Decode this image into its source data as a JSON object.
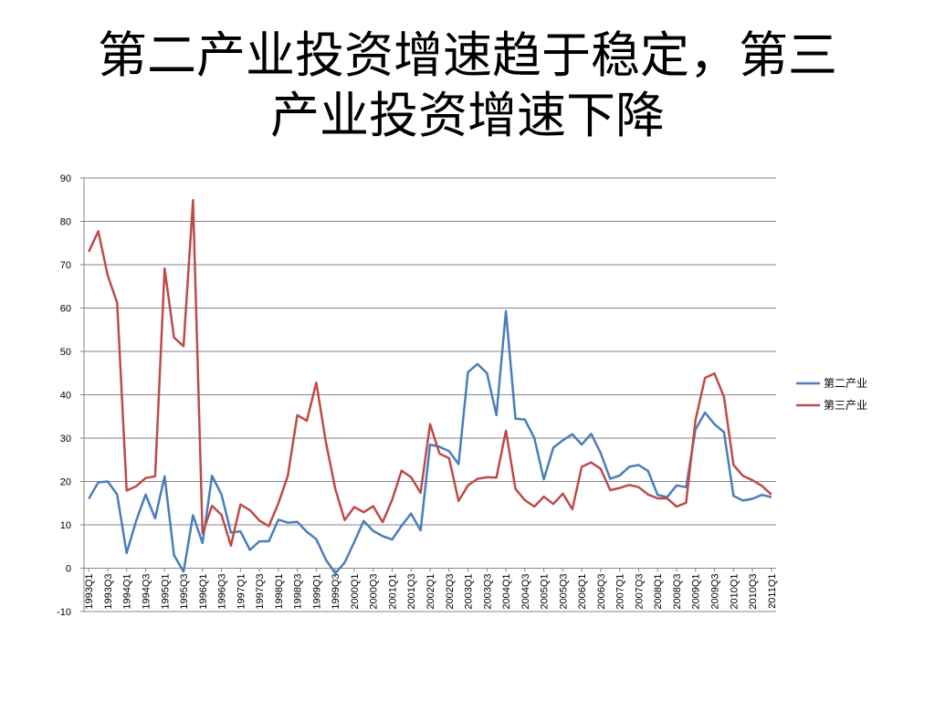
{
  "slide": {
    "title_line1": "第二产业投资增速趋于稳定，第三",
    "title_line2": "产业投资增速下降"
  },
  "chart_data": {
    "type": "line",
    "title": "",
    "xlabel": "",
    "ylabel": "",
    "ylim": [
      -10,
      90
    ],
    "yticks": [
      -10,
      0,
      10,
      20,
      30,
      40,
      50,
      60,
      70,
      80,
      90
    ],
    "grid": true,
    "legend_position": "right",
    "x": [
      "1993Q1",
      "1993Q2",
      "1993Q3",
      "1993Q4",
      "1994Q1",
      "1994Q2",
      "1994Q3",
      "1994Q4",
      "1995Q1",
      "1995Q2",
      "1995Q3",
      "1995Q4",
      "1996Q1",
      "1996Q2",
      "1996Q3",
      "1996Q4",
      "1997Q1",
      "1997Q2",
      "1997Q3",
      "1997Q4",
      "1998Q1",
      "1998Q2",
      "1998Q3",
      "1998Q4",
      "1999Q1",
      "1999Q2",
      "1999Q3",
      "1999Q4",
      "2000Q1",
      "2000Q2",
      "2000Q3",
      "2000Q4",
      "2001Q1",
      "2001Q2",
      "2001Q3",
      "2001Q4",
      "2002Q1",
      "2002Q2",
      "2002Q3",
      "2002Q4",
      "2003Q1",
      "2003Q2",
      "2003Q3",
      "2003Q4",
      "2004Q1",
      "2004Q2",
      "2004Q3",
      "2004Q4",
      "2005Q1",
      "2005Q2",
      "2005Q3",
      "2005Q4",
      "2006Q1",
      "2006Q2",
      "2006Q3",
      "2006Q4",
      "2007Q1",
      "2007Q2",
      "2007Q3",
      "2007Q4",
      "2008Q1",
      "2008Q2",
      "2008Q3",
      "2008Q4",
      "2009Q1",
      "2009Q2",
      "2009Q3",
      "2009Q4",
      "2010Q1",
      "2010Q2",
      "2010Q3",
      "2010Q4",
      "2011Q1"
    ],
    "x_tick_labels": [
      "1993Q1",
      "1993Q3",
      "1994Q1",
      "1994Q3",
      "1995Q1",
      "1995Q3",
      "1996Q1",
      "1996Q3",
      "1997Q1",
      "1997Q3",
      "1998Q1",
      "1998Q3",
      "1999Q1",
      "1999Q3",
      "2000Q1",
      "2000Q3",
      "2001Q1",
      "2001Q3",
      "2002Q1",
      "2002Q3",
      "2003Q1",
      "2003Q3",
      "2004Q1",
      "2004Q3",
      "2005Q1",
      "2005Q3",
      "2006Q1",
      "2006Q3",
      "2007Q1",
      "2007Q3",
      "2008Q1",
      "2008Q3",
      "2009Q1",
      "2009Q3",
      "2010Q1",
      "2010Q3",
      "2011Q1"
    ],
    "series": [
      {
        "name": "第二产业",
        "color": "#4a7ebb",
        "values": [
          16,
          19.8,
          20,
          17,
          3.5,
          10.9,
          17,
          11.5,
          21.2,
          3,
          -0.8,
          12.2,
          5.8,
          21.3,
          17,
          8.2,
          8.5,
          4.2,
          6.2,
          6.2,
          11.2,
          10.5,
          10.7,
          8.4,
          6.7,
          2,
          -1.2,
          1.3,
          6,
          10.9,
          8.6,
          7.4,
          6.6,
          9.8,
          12.6,
          8.7,
          28.5,
          28,
          27,
          24,
          45.2,
          47.1,
          45,
          35.3,
          59.3,
          34.5,
          34.3,
          30,
          20.5,
          27.8,
          29.5,
          30.9,
          28.5,
          31,
          26.5,
          20.6,
          21.4,
          23.4,
          23.8,
          22.4,
          16.9,
          16.4,
          19.1,
          18.7,
          32,
          35.9,
          33.2,
          31.4,
          16.7,
          15.6,
          16,
          16.9,
          16.4
        ]
      },
      {
        "name": "第三产业",
        "color": "#be4b48",
        "values": [
          73,
          77.7,
          67.5,
          61.2,
          17.9,
          18.9,
          20.8,
          21.2,
          69.1,
          53.2,
          51.2,
          84.9,
          8,
          14.4,
          12.3,
          5.2,
          14.7,
          13.4,
          11,
          9.7,
          15,
          21.3,
          35.3,
          34,
          42.8,
          29.2,
          18.3,
          11.1,
          14.1,
          12.9,
          14.3,
          10.6,
          15.8,
          22.5,
          21,
          17.4,
          33.2,
          26.4,
          25.4,
          15.5,
          19.1,
          20.6,
          21,
          20.9,
          31.7,
          18.3,
          15.7,
          14.2,
          16.5,
          14.8,
          17.2,
          13.6,
          23.4,
          24.4,
          22.9,
          18,
          18.5,
          19.2,
          18.7,
          17,
          16.1,
          16.1,
          14.2,
          15.1,
          34.2,
          43.9,
          44.9,
          39.5,
          23.8,
          21.3,
          20.3,
          19,
          17
        ]
      }
    ]
  }
}
